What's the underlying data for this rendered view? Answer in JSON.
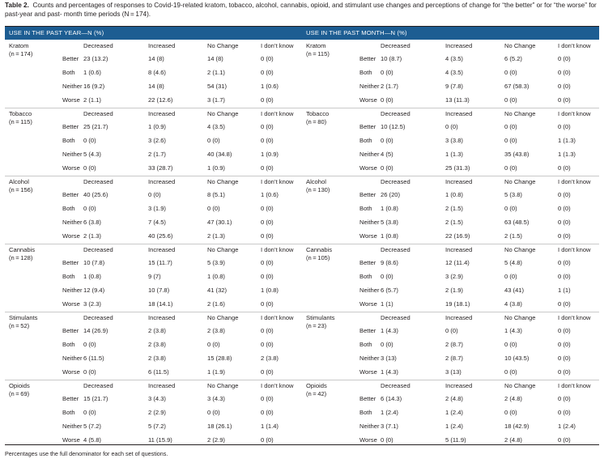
{
  "caption": {
    "label": "Table 2.",
    "text": "Counts and percentages of responses to Covid-19-related kratom, tobacco, alcohol, cannabis, opioid, and stimulant use changes and perceptions of change for “the better” or for “the worse” for past-year and past- month time periods (N = 174)."
  },
  "footnote": "Percentages use the full denominator for each set of questions.",
  "headers": {
    "year": "USE IN THE PAST YEAR—N (%)",
    "month": "USE IN THE PAST MONTH—N (%)"
  },
  "col_headers": [
    "Decreased",
    "Increased",
    "No Change",
    "I don’t know"
  ],
  "row_labels": [
    "Better",
    "Both",
    "Neither",
    "Worse"
  ],
  "year": [
    {
      "substance": "Kratom",
      "n": "(n = 174)",
      "rows": [
        [
          "23 (13.2)",
          "14 (8)",
          "14 (8)",
          "0 (0)"
        ],
        [
          "1 (0.6)",
          "8 (4.6)",
          "2 (1.1)",
          "0 (0)"
        ],
        [
          "16 (9.2)",
          "14 (8)",
          "54 (31)",
          "1 (0.6)"
        ],
        [
          "2 (1.1)",
          "22 (12.6)",
          "3 (1.7)",
          "0 (0)"
        ]
      ]
    },
    {
      "substance": "Tobacco",
      "n": "(n = 115)",
      "rows": [
        [
          "25 (21.7)",
          "1 (0.9)",
          "4 (3.5)",
          "0 (0)"
        ],
        [
          "0 (0)",
          "3 (2.6)",
          "0 (0)",
          "0 (0)"
        ],
        [
          "5 (4.3)",
          "2 (1.7)",
          "40 (34.8)",
          "1 (0.9)"
        ],
        [
          "0 (0)",
          "33 (28.7)",
          "1 (0.9)",
          "0 (0)"
        ]
      ]
    },
    {
      "substance": "Alcohol",
      "n": "(n = 156)",
      "rows": [
        [
          "40 (25.6)",
          "0 (0)",
          "8 (5.1)",
          "1 (0.6)"
        ],
        [
          "0 (0)",
          "3 (1.9)",
          "0 (0)",
          "0 (0)"
        ],
        [
          "6 (3.8)",
          "7 (4.5)",
          "47 (30.1)",
          "0 (0)"
        ],
        [
          "2 (1.3)",
          "40 (25.6)",
          "2 (1.3)",
          "0 (0)"
        ]
      ]
    },
    {
      "substance": "Cannabis",
      "n": "(n = 128)",
      "rows": [
        [
          "10 (7.8)",
          "15 (11.7)",
          "5 (3.9)",
          "0 (0)"
        ],
        [
          "1 (0.8)",
          "9 (7)",
          "1 (0.8)",
          "0 (0)"
        ],
        [
          "12 (9.4)",
          "10 (7.8)",
          "41 (32)",
          "1 (0.8)"
        ],
        [
          "3 (2.3)",
          "18 (14.1)",
          "2 (1.6)",
          "0 (0)"
        ]
      ]
    },
    {
      "substance": "Stimulants",
      "n": "(n = 52)",
      "rows": [
        [
          "14 (26.9)",
          "2 (3.8)",
          "2 (3.8)",
          "0 (0)"
        ],
        [
          "0 (0)",
          "2 (3.8)",
          "0 (0)",
          "0 (0)"
        ],
        [
          "6 (11.5)",
          "2 (3.8)",
          "15 (28.8)",
          "2 (3.8)"
        ],
        [
          "0 (0)",
          "6 (11.5)",
          "1 (1.9)",
          "0 (0)"
        ]
      ]
    },
    {
      "substance": "Opioids",
      "n": "(n = 69)",
      "rows": [
        [
          "15 (21.7)",
          "3 (4.3)",
          "3 (4.3)",
          "0 (0)"
        ],
        [
          "0 (0)",
          "2 (2.9)",
          "0 (0)",
          "0 (0)"
        ],
        [
          "5 (7.2)",
          "5 (7.2)",
          "18 (26.1)",
          "1 (1.4)"
        ],
        [
          "4 (5.8)",
          "11 (15.9)",
          "2 (2.9)",
          "0 (0)"
        ]
      ]
    }
  ],
  "month": [
    {
      "substance": "Kratom",
      "n": "(n = 115)",
      "rows": [
        [
          "10 (8.7)",
          "4 (3.5)",
          "6 (5.2)",
          "0 (0)"
        ],
        [
          "0 (0)",
          "4 (3.5)",
          "0 (0)",
          "0 (0)"
        ],
        [
          "2 (1.7)",
          "9 (7.8)",
          "67 (58.3)",
          "0 (0)"
        ],
        [
          "0 (0)",
          "13 (11.3)",
          "0 (0)",
          "0 (0)"
        ]
      ]
    },
    {
      "substance": "Tobacco",
      "n": "(n = 80)",
      "rows": [
        [
          "10 (12.5)",
          "0 (0)",
          "0 (0)",
          "0 (0)"
        ],
        [
          "0 (0)",
          "3 (3.8)",
          "0 (0)",
          "1 (1.3)"
        ],
        [
          "4 (5)",
          "1 (1.3)",
          "35 (43.8)",
          "1 (1.3)"
        ],
        [
          "0 (0)",
          "25 (31.3)",
          "0 (0)",
          "0 (0)"
        ]
      ]
    },
    {
      "substance": "Alcohol",
      "n": "(n = 130)",
      "rows": [
        [
          "26 (20)",
          "1 (0.8)",
          "5 (3.8)",
          "0 (0)"
        ],
        [
          "1 (0.8)",
          "2 (1.5)",
          "0 (0)",
          "0 (0)"
        ],
        [
          "5 (3.8)",
          "2 (1.5)",
          "63 (48.5)",
          "0 (0)"
        ],
        [
          "1 (0.8)",
          "22 (16.9)",
          "2 (1.5)",
          "0 (0)"
        ]
      ]
    },
    {
      "substance": "Cannabis",
      "n": "(n = 105)",
      "rows": [
        [
          "9 (8.6)",
          "12 (11.4)",
          "5 (4.8)",
          "0 (0)"
        ],
        [
          "0 (0)",
          "3 (2.9)",
          "0 (0)",
          "0 (0)"
        ],
        [
          "6 (5.7)",
          "2 (1.9)",
          "43 (41)",
          "1 (1)"
        ],
        [
          "1 (1)",
          "19 (18.1)",
          "4 (3.8)",
          "0 (0)"
        ]
      ]
    },
    {
      "substance": "Stimulants",
      "n": "(n = 23)",
      "rows": [
        [
          "1 (4.3)",
          "0 (0)",
          "1 (4.3)",
          "0 (0)"
        ],
        [
          "0 (0)",
          "2 (8.7)",
          "0 (0)",
          "0 (0)"
        ],
        [
          "3 (13)",
          "2 (8.7)",
          "10 (43.5)",
          "0 (0)"
        ],
        [
          "1 (4.3)",
          "3 (13)",
          "0 (0)",
          "0 (0)"
        ]
      ]
    },
    {
      "substance": "Opioids",
      "n": "(n = 42)",
      "rows": [
        [
          "6 (14.3)",
          "2 (4.8)",
          "2 (4.8)",
          "0 (0)"
        ],
        [
          "1 (2.4)",
          "1 (2.4)",
          "0 (0)",
          "0 (0)"
        ],
        [
          "3 (7.1)",
          "1 (2.4)",
          "18 (42.9)",
          "1 (2.4)"
        ],
        [
          "0 (0)",
          "5 (11.9)",
          "2 (4.8)",
          "0 (0)"
        ]
      ]
    }
  ]
}
